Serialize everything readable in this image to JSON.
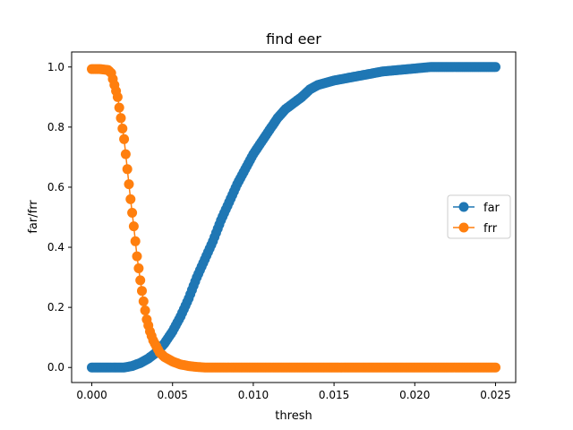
{
  "chart_data": {
    "type": "line",
    "title": "find eer",
    "xlabel": "thresh",
    "ylabel": "far/frr",
    "xlim": [
      -0.00125,
      0.02625
    ],
    "ylim": [
      -0.05,
      1.05
    ],
    "xticks": [
      0.0,
      0.005,
      0.01,
      0.015,
      0.02,
      0.025
    ],
    "xtick_labels": [
      "0.000",
      "0.005",
      "0.010",
      "0.015",
      "0.020",
      "0.025"
    ],
    "yticks": [
      0.0,
      0.2,
      0.4,
      0.6,
      0.8,
      1.0
    ],
    "ytick_labels": [
      "0.0",
      "0.2",
      "0.4",
      "0.6",
      "0.8",
      "1.0"
    ],
    "grid": false,
    "legend": "center-right",
    "marker": "circle",
    "series": [
      {
        "name": "far",
        "color": "#1f77b4",
        "x": [
          0.0,
          0.001,
          0.002,
          0.0025,
          0.003,
          0.0035,
          0.004,
          0.0045,
          0.005,
          0.0055,
          0.006,
          0.0065,
          0.007,
          0.0075,
          0.008,
          0.0085,
          0.009,
          0.0095,
          0.01,
          0.0105,
          0.011,
          0.0115,
          0.012,
          0.0125,
          0.013,
          0.0135,
          0.014,
          0.015,
          0.016,
          0.017,
          0.018,
          0.019,
          0.02,
          0.021,
          0.022,
          0.023,
          0.024,
          0.025
        ],
        "y": [
          0.0,
          0.0,
          0.0,
          0.005,
          0.015,
          0.03,
          0.05,
          0.08,
          0.12,
          0.17,
          0.23,
          0.3,
          0.36,
          0.42,
          0.49,
          0.55,
          0.61,
          0.66,
          0.71,
          0.75,
          0.79,
          0.83,
          0.86,
          0.88,
          0.9,
          0.925,
          0.94,
          0.955,
          0.965,
          0.975,
          0.985,
          0.99,
          0.995,
          1.0,
          1.0,
          1.0,
          1.0,
          1.0
        ]
      },
      {
        "name": "frr",
        "color": "#ff7f0e",
        "x": [
          0.0,
          0.0005,
          0.001,
          0.0012,
          0.0014,
          0.0016,
          0.0018,
          0.002,
          0.0022,
          0.0024,
          0.0026,
          0.0028,
          0.003,
          0.0032,
          0.0034,
          0.0036,
          0.0038,
          0.004,
          0.0042,
          0.0045,
          0.005,
          0.0055,
          0.006,
          0.0065,
          0.007,
          0.008,
          0.01,
          0.015,
          0.02,
          0.025
        ],
        "y": [
          0.993,
          0.993,
          0.99,
          0.98,
          0.94,
          0.9,
          0.83,
          0.76,
          0.66,
          0.56,
          0.47,
          0.37,
          0.29,
          0.22,
          0.16,
          0.12,
          0.09,
          0.07,
          0.05,
          0.035,
          0.02,
          0.01,
          0.005,
          0.002,
          0.0,
          0.0,
          0.0,
          0.0,
          0.0,
          0.0
        ]
      }
    ]
  }
}
